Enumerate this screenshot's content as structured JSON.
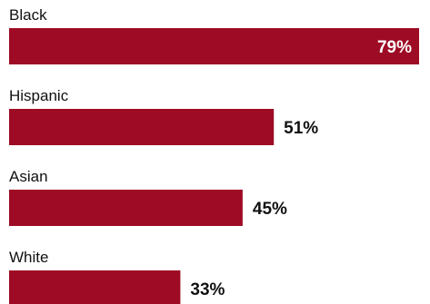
{
  "chart_data": {
    "type": "bar",
    "orientation": "horizontal",
    "categories": [
      "Black",
      "Hispanic",
      "Asian",
      "White"
    ],
    "values": [
      79,
      51,
      45,
      33
    ],
    "value_labels": [
      "79%",
      "51%",
      "45%",
      "33%"
    ],
    "unit": "%",
    "xlim": [
      0,
      79
    ],
    "grid": false,
    "legend": "none",
    "colors": {
      "bar": "#9e0b25",
      "label_inside": "#ffffff",
      "label_outside": "#111111",
      "category_text": "#111111"
    }
  }
}
